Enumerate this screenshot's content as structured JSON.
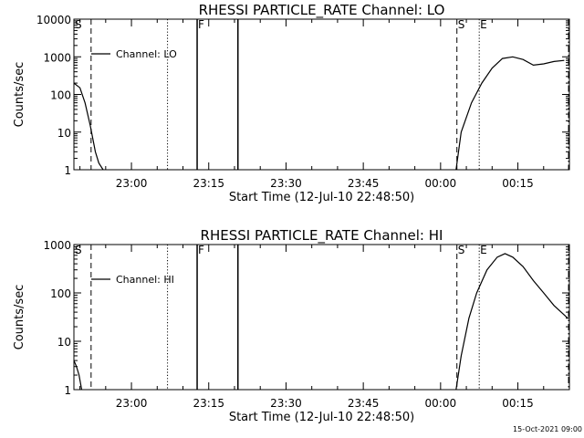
{
  "footer": {
    "timestamp": "15-Oct-2021 09:00"
  },
  "chart_data": [
    {
      "type": "line",
      "title": "RHESSI PARTICLE_RATE Channel: LO",
      "xlabel": "Start Time (12-Jul-10 22:48:50)",
      "ylabel": "Counts/sec",
      "y_scale": "log",
      "ylim": [
        1,
        10000
      ],
      "xlim": [
        "22:48:50",
        "00:25:00"
      ],
      "x_ticks": [
        "23:00",
        "23:15",
        "23:30",
        "23:45",
        "00:00",
        "00:15"
      ],
      "y_ticks": [
        "1",
        "10",
        "100",
        "1000",
        "10000"
      ],
      "legend": {
        "label": "Channel: LO",
        "position": "top-left"
      },
      "series": [
        {
          "name": "Channel: LO",
          "segments": [
            [
              [
                "22:48:50",
                200
              ],
              [
                "22:50:00",
                150
              ],
              [
                "22:51:00",
                60
              ],
              [
                "22:52:00",
                15
              ],
              [
                "22:53:00",
                3
              ],
              [
                "22:53:40",
                1.5
              ],
              [
                "22:54:30",
                1
              ]
            ],
            [
              [
                "00:03:00",
                1
              ],
              [
                "00:04:00",
                10
              ],
              [
                "00:06:00",
                60
              ],
              [
                "00:08:00",
                200
              ],
              [
                "00:10:00",
                500
              ],
              [
                "00:12:00",
                900
              ],
              [
                "00:14:00",
                1000
              ],
              [
                "00:16:00",
                850
              ],
              [
                "00:18:00",
                600
              ],
              [
                "00:20:00",
                650
              ],
              [
                "00:22:00",
                750
              ],
              [
                "00:24:00",
                800
              ]
            ]
          ]
        }
      ],
      "markers": [
        {
          "label": "S",
          "time": "22:48:50",
          "style": "dashed"
        },
        {
          "label": "",
          "time": "22:52:10",
          "style": "dashed"
        },
        {
          "label": "",
          "time": "23:07:00",
          "style": "dotted"
        },
        {
          "label": "F",
          "time": "23:12:45",
          "style": "solid"
        },
        {
          "label": "",
          "time": "23:20:40",
          "style": "solid"
        },
        {
          "label": "S",
          "time": "00:03:10",
          "style": "dashed"
        },
        {
          "label": "E",
          "time": "00:07:30",
          "style": "dotted"
        },
        {
          "label": "",
          "time": "00:24:50",
          "style": "dashdot"
        }
      ]
    },
    {
      "type": "line",
      "title": "RHESSI PARTICLE_RATE Channel: HI",
      "xlabel": "Start Time (12-Jul-10 22:48:50)",
      "ylabel": "Counts/sec",
      "y_scale": "log",
      "ylim": [
        1,
        1000
      ],
      "xlim": [
        "22:48:50",
        "00:25:00"
      ],
      "x_ticks": [
        "23:00",
        "23:15",
        "23:30",
        "23:45",
        "00:00",
        "00:15"
      ],
      "y_ticks": [
        "1",
        "10",
        "100",
        "1000"
      ],
      "legend": {
        "label": "Channel: HI",
        "position": "top-left"
      },
      "series": [
        {
          "name": "Channel: HI",
          "segments": [
            [
              [
                "22:48:50",
                4
              ],
              [
                "22:49:20",
                3
              ],
              [
                "22:49:50",
                2
              ],
              [
                "22:50:20",
                1
              ]
            ],
            [
              [
                "00:03:00",
                1
              ],
              [
                "00:04:00",
                5
              ],
              [
                "00:05:30",
                30
              ],
              [
                "00:07:00",
                100
              ],
              [
                "00:09:00",
                300
              ],
              [
                "00:11:00",
                550
              ],
              [
                "00:12:30",
                650
              ],
              [
                "00:14:00",
                550
              ],
              [
                "00:16:00",
                350
              ],
              [
                "00:18:00",
                180
              ],
              [
                "00:20:00",
                100
              ],
              [
                "00:22:00",
                55
              ],
              [
                "00:24:00",
                35
              ],
              [
                "00:24:40",
                30
              ]
            ]
          ]
        }
      ],
      "markers": [
        {
          "label": "S",
          "time": "22:48:50",
          "style": "dashed"
        },
        {
          "label": "",
          "time": "22:52:10",
          "style": "dashed"
        },
        {
          "label": "",
          "time": "23:07:00",
          "style": "dotted"
        },
        {
          "label": "F",
          "time": "23:12:45",
          "style": "solid"
        },
        {
          "label": "",
          "time": "23:20:40",
          "style": "solid"
        },
        {
          "label": "S",
          "time": "00:03:10",
          "style": "dashed"
        },
        {
          "label": "E",
          "time": "00:07:30",
          "style": "dotted"
        },
        {
          "label": "",
          "time": "00:24:50",
          "style": "dashdot"
        }
      ]
    }
  ]
}
